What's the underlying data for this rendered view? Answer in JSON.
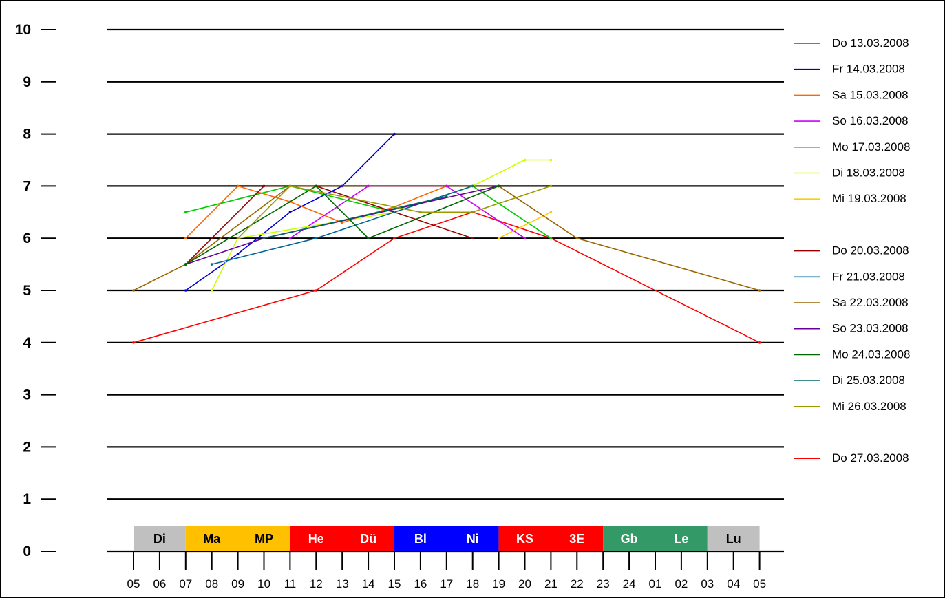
{
  "chart_data": {
    "type": "line",
    "title": "",
    "xlabel": "",
    "ylabel": "",
    "ylim": [
      0,
      10
    ],
    "y_ticks": [
      "0",
      "1",
      "2",
      "3",
      "4",
      "5",
      "6",
      "7",
      "8",
      "9",
      "10"
    ],
    "grid": true,
    "legend_position": "right",
    "x_tick_labels": [
      "05",
      "06",
      "07",
      "08",
      "09",
      "10",
      "11",
      "12",
      "13",
      "14",
      "15",
      "16",
      "17",
      "18",
      "19",
      "20",
      "21",
      "22",
      "23",
      "24",
      "01",
      "02",
      "03",
      "04",
      "05"
    ],
    "bands": [
      {
        "labels": [
          "Di"
        ],
        "color": "#c0c0c0",
        "text_color": "#000000",
        "start": 0,
        "end": 2
      },
      {
        "labels": [
          "Ma",
          "MP"
        ],
        "color": "#ffc000",
        "text_color": "#000000",
        "start": 2,
        "end": 6
      },
      {
        "labels": [
          "He",
          "Dü"
        ],
        "color": "#ff0000",
        "text_color": "#ffffff",
        "start": 6,
        "end": 10
      },
      {
        "labels": [
          "Bl",
          "Ni"
        ],
        "color": "#0000ff",
        "text_color": "#ffffff",
        "start": 10,
        "end": 14
      },
      {
        "labels": [
          "KS",
          "3E"
        ],
        "color": "#ff0000",
        "text_color": "#ffffff",
        "start": 14,
        "end": 18
      },
      {
        "labels": [
          "Gb",
          "Le"
        ],
        "color": "#339966",
        "text_color": "#ffffff",
        "start": 18,
        "end": 22
      },
      {
        "labels": [
          "Lu"
        ],
        "color": "#c0c0c0",
        "text_color": "#000000",
        "start": 22,
        "end": 24
      }
    ],
    "series": [
      {
        "name": "Do 13.03.2008",
        "color": "#ff0000",
        "legend_slot": 0,
        "points": [
          [
            0,
            4
          ],
          [
            7,
            5
          ],
          [
            10,
            6
          ],
          [
            13,
            6.5
          ],
          [
            16,
            6
          ],
          [
            24,
            4
          ]
        ]
      },
      {
        "name": "Fr 14.03.2008",
        "color": "#0000cc",
        "legend_slot": 1,
        "points": [
          [
            2,
            5
          ],
          [
            4,
            5.7
          ],
          [
            6,
            6.5
          ],
          [
            8,
            7
          ],
          [
            10,
            8
          ]
        ]
      },
      {
        "name": "Sa 15.03.2008",
        "color": "#ff6600",
        "legend_slot": 2,
        "points": [
          [
            2,
            6
          ],
          [
            4,
            7
          ],
          [
            6,
            6.7
          ],
          [
            8,
            6.3
          ],
          [
            10,
            6.6
          ],
          [
            12,
            7
          ]
        ]
      },
      {
        "name": "So 16.03.2008",
        "color": "#cc00ff",
        "legend_slot": 3,
        "points": [
          [
            6,
            6
          ],
          [
            9,
            7
          ],
          [
            12,
            7
          ],
          [
            15,
            6
          ]
        ]
      },
      {
        "name": "Mo 17.03.2008",
        "color": "#00cc00",
        "legend_slot": 4,
        "points": [
          [
            2,
            6.5
          ],
          [
            6,
            7
          ],
          [
            10,
            6.5
          ],
          [
            13,
            7
          ],
          [
            16,
            6
          ]
        ]
      },
      {
        "name": "Di 18.03.2008",
        "color": "#ccff00",
        "legend_slot": 5,
        "points": [
          [
            3,
            5
          ],
          [
            4,
            6
          ],
          [
            10,
            6.5
          ],
          [
            13,
            7
          ],
          [
            15,
            7.5
          ],
          [
            16,
            7.5
          ]
        ]
      },
      {
        "name": "Mi 19.03.2008",
        "color": "#ffcc00",
        "legend_slot": 6,
        "points": [
          [
            14,
            6
          ],
          [
            16,
            6.5
          ]
        ]
      },
      {
        "name": "Do 20.03.2008",
        "color": "#990000",
        "legend_slot": 8,
        "points": [
          [
            2,
            5.5
          ],
          [
            3,
            6
          ],
          [
            5,
            7
          ],
          [
            7,
            7
          ],
          [
            13,
            6
          ]
        ]
      },
      {
        "name": "Fr 21.03.2008",
        "color": "#006699",
        "legend_slot": 9,
        "points": [
          [
            3,
            5.5
          ],
          [
            7,
            6
          ],
          [
            13,
            7
          ]
        ]
      },
      {
        "name": "Sa 22.03.2008",
        "color": "#996600",
        "legend_slot": 10,
        "points": [
          [
            0,
            5
          ],
          [
            2,
            5.5
          ],
          [
            6,
            7
          ],
          [
            14,
            7
          ],
          [
            17,
            6
          ],
          [
            24,
            5
          ]
        ]
      },
      {
        "name": "So 23.03.2008",
        "color": "#660099",
        "legend_slot": 11,
        "points": [
          [
            2,
            5.5
          ],
          [
            5,
            6
          ],
          [
            14,
            7
          ]
        ]
      },
      {
        "name": "Mo 24.03.2008",
        "color": "#006600",
        "legend_slot": 12,
        "points": [
          [
            2,
            5.5
          ],
          [
            7,
            7
          ],
          [
            9,
            6
          ],
          [
            14,
            7
          ]
        ]
      },
      {
        "name": "Di 25.03.2008",
        "color": "#006666",
        "legend_slot": 13,
        "points": [
          [
            5,
            6
          ],
          [
            12,
            6.8
          ]
        ]
      },
      {
        "name": "Mi 26.03.2008",
        "color": "#999900",
        "legend_slot": 14,
        "points": [
          [
            4,
            6
          ],
          [
            6,
            7
          ],
          [
            11,
            6.5
          ],
          [
            13,
            6.5
          ],
          [
            16,
            7
          ]
        ]
      },
      {
        "name": "Do 27.03.2008",
        "color": "#ff0000",
        "legend_slot": 16,
        "points": []
      }
    ]
  }
}
